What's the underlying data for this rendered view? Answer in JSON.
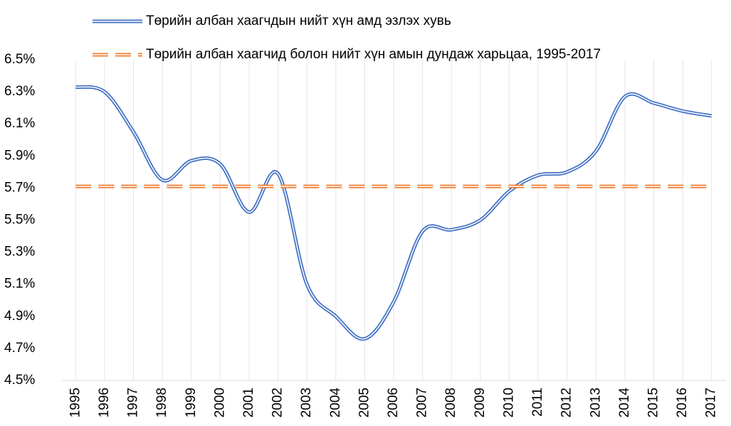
{
  "chart_data": {
    "type": "line",
    "categories": [
      "1995",
      "1996",
      "1997",
      "1998",
      "1999",
      "2000",
      "2001",
      "2002",
      "2003",
      "2004",
      "2005",
      "2006",
      "2007",
      "2008",
      "2009",
      "2010",
      "2011",
      "2012",
      "2013",
      "2014",
      "2015",
      "2016",
      "2017"
    ],
    "series": [
      {
        "name": "Төрийн албан хаагчдын нийт хүн амд эзлэх хувь",
        "color": "#4472c4",
        "values": [
          6.33,
          6.3,
          6.05,
          5.75,
          5.87,
          5.85,
          5.55,
          5.79,
          5.1,
          4.9,
          4.76,
          4.99,
          5.43,
          5.44,
          5.5,
          5.68,
          5.78,
          5.8,
          5.93,
          6.27,
          6.23,
          6.18,
          6.15
        ]
      },
      {
        "name": "Төрийн албан хаагчид болон нийт хүн амын дундаж харьцаа, 1995-2017",
        "color": "#ed7d31",
        "dashed": true,
        "values": [
          5.71,
          5.71,
          5.71,
          5.71,
          5.71,
          5.71,
          5.71,
          5.71,
          5.71,
          5.71,
          5.71,
          5.71,
          5.71,
          5.71,
          5.71,
          5.71,
          5.71,
          5.71,
          5.71,
          5.71,
          5.71,
          5.71,
          5.71
        ]
      }
    ],
    "ylim": [
      4.5,
      6.5
    ],
    "yticks": [
      {
        "value": 4.5,
        "label": "4.5%"
      },
      {
        "value": 4.7,
        "label": "4.7%"
      },
      {
        "value": 4.9,
        "label": "4.9%"
      },
      {
        "value": 5.1,
        "label": "5.1%"
      },
      {
        "value": 5.3,
        "label": "5.3%"
      },
      {
        "value": 5.5,
        "label": "5.5%"
      },
      {
        "value": 5.7,
        "label": "5.7%"
      },
      {
        "value": 5.9,
        "label": "5.9%"
      },
      {
        "value": 6.1,
        "label": "6.1%"
      },
      {
        "value": 6.3,
        "label": "6.3%"
      },
      {
        "value": 6.5,
        "label": "6.5%"
      }
    ],
    "grid": true
  }
}
